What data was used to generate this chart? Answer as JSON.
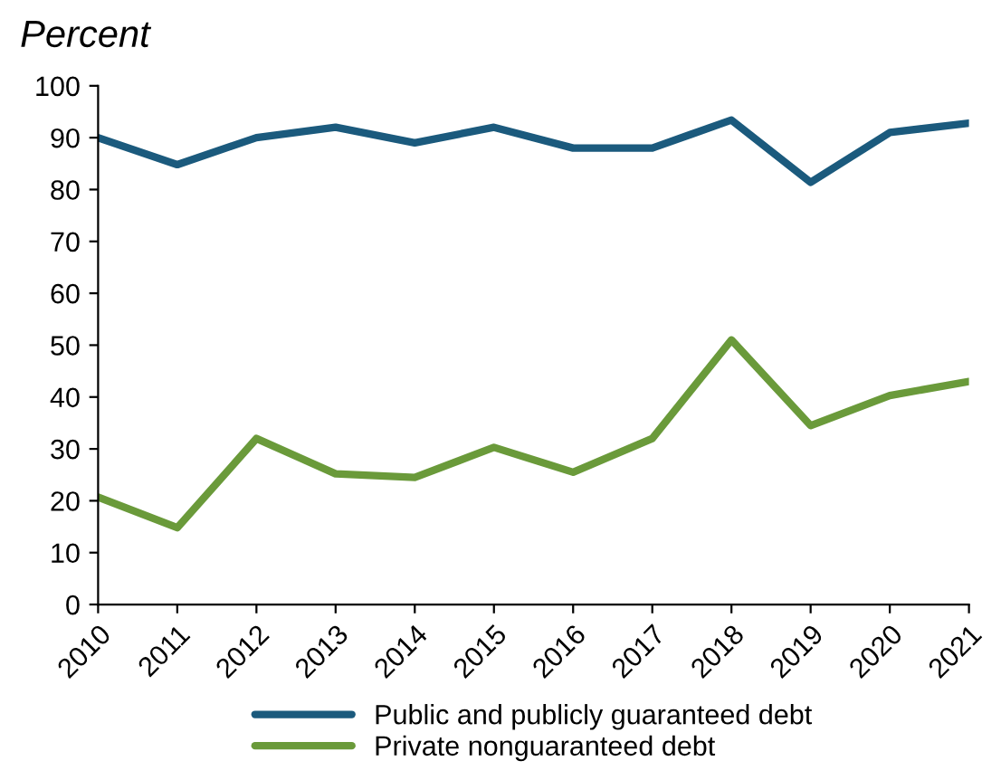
{
  "chart_data": {
    "type": "line",
    "title": "Percent",
    "categories": [
      "2010",
      "2011",
      "2012",
      "2013",
      "2014",
      "2015",
      "2016",
      "2017",
      "2018",
      "2019",
      "2020",
      "2021"
    ],
    "series": [
      {
        "name": "Public and publicly guaranteed debt",
        "color": "#1b5a7d",
        "values": [
          90,
          84.8,
          90,
          92,
          89,
          92,
          88,
          88,
          93.4,
          81.4,
          91,
          92.8
        ]
      },
      {
        "name": "Private nonguaranteed debt",
        "color": "#6a9a3a",
        "values": [
          20.7,
          14.8,
          32,
          25.2,
          24.5,
          30.3,
          25.5,
          32,
          51,
          34.5,
          40.3,
          43
        ]
      }
    ],
    "ylim": [
      0,
      100
    ],
    "yticks": [
      0,
      10,
      20,
      30,
      40,
      50,
      60,
      70,
      80,
      90,
      100
    ],
    "grid": false,
    "legend": "bottom",
    "marker": "none",
    "line_style": "solid"
  }
}
